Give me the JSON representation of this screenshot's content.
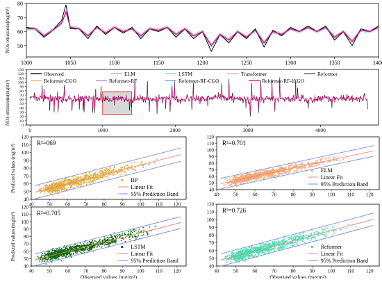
{
  "chart_data": [
    {
      "type": "line",
      "title": "",
      "xlabel": "",
      "ylabel": "NOx emissions(mg/m³)",
      "xlim": [
        1000,
        1400
      ],
      "ylim": [
        42,
        80
      ],
      "xticks": [
        1000,
        1050,
        1100,
        1150,
        1200,
        1250,
        1300,
        1350,
        1400
      ],
      "yticks": [
        50,
        60,
        70,
        80
      ],
      "x": [
        1000,
        1010,
        1020,
        1030,
        1040,
        1045,
        1050,
        1060,
        1070,
        1080,
        1090,
        1100,
        1110,
        1120,
        1130,
        1140,
        1150,
        1160,
        1170,
        1180,
        1190,
        1200,
        1210,
        1220,
        1230,
        1240,
        1250,
        1260,
        1270,
        1280,
        1290,
        1300,
        1310,
        1320,
        1330,
        1340,
        1350,
        1360,
        1370,
        1380,
        1390,
        1400
      ],
      "series": [
        {
          "name": "Observed",
          "color": "#000000",
          "values": [
            63,
            62,
            56,
            61,
            68,
            79,
            62,
            62,
            55,
            64,
            58,
            63,
            59,
            63,
            55,
            62,
            60,
            63,
            56,
            62,
            55,
            60,
            46,
            58,
            52,
            60,
            55,
            62,
            49,
            61,
            57,
            63,
            60,
            64,
            60,
            64,
            54,
            60,
            50,
            62,
            60,
            64
          ]
        },
        {
          "name": "Reformer-RF-ICGO",
          "color": "#e6007e",
          "values": [
            62,
            62,
            57,
            61,
            66,
            74,
            63,
            62,
            57,
            63,
            59,
            63,
            60,
            62,
            57,
            62,
            61,
            63,
            58,
            62,
            57,
            60,
            50,
            58,
            54,
            60,
            56,
            61,
            52,
            60,
            58,
            62,
            60,
            63,
            60,
            63,
            56,
            60,
            53,
            61,
            60,
            63
          ]
        }
      ]
    },
    {
      "type": "line",
      "title": "",
      "xlabel": "",
      "ylabel": "NOx emissions(mg/m³)",
      "xlim": [
        -50,
        4800
      ],
      "ylim": [
        0,
        130
      ],
      "xticks": [
        0,
        1000,
        2000,
        3000,
        4000
      ],
      "yticks": [
        0,
        10,
        20,
        30,
        40,
        50,
        60,
        70,
        80,
        90,
        100,
        110,
        120,
        130
      ],
      "highlight_range": [
        1000,
        1400
      ],
      "x": [
        0,
        150,
        300,
        450,
        600,
        750,
        900,
        1050,
        1200,
        1350,
        1500,
        1650,
        1800,
        1950,
        2100,
        2250,
        2400,
        2550,
        2700,
        2850,
        3000,
        3150,
        3300,
        3450,
        3600,
        3750,
        3900,
        4050,
        4200,
        4350,
        4500,
        4650
      ],
      "legend_position": "top",
      "series": [
        {
          "name": "Observed",
          "color": "#000000"
        },
        {
          "name": "ELM",
          "color": "#c9a0a0"
        },
        {
          "name": "LSTM",
          "color": "#7fcfc4"
        },
        {
          "name": "Transformer",
          "color": "#e8a0c8"
        },
        {
          "name": "Reformer",
          "color": "#555555"
        },
        {
          "name": "Reformer-CGO",
          "color": "#f0b050"
        },
        {
          "name": "Reformer-RF",
          "color": "#b080e0"
        },
        {
          "name": "Reformer-RF-CGO",
          "color": "#50a0f0"
        },
        {
          "name": "Reformer-RF-ICGO",
          "color": "#e6007e",
          "values": [
            68,
            63,
            64,
            62,
            60,
            63,
            62,
            61,
            63,
            60,
            62,
            59,
            61,
            63,
            58,
            62,
            60,
            66,
            64,
            62,
            60,
            61,
            63,
            62,
            61,
            62,
            60,
            64,
            63,
            62,
            61,
            64
          ]
        }
      ]
    },
    {
      "type": "scatter",
      "panel": "BP",
      "r2_label": "R²=069",
      "xlabel": "",
      "ylabel": "Predicted values (mg/m³)",
      "xlim": [
        40,
        125
      ],
      "ylim": [
        40,
        120
      ],
      "xticks": [
        40,
        50,
        60,
        70,
        80,
        90,
        100,
        110,
        120
      ],
      "yticks": [
        40,
        50,
        60,
        70,
        80,
        90,
        100,
        110,
        120
      ],
      "point_color": "#e0b040",
      "fit": {
        "intercept": 24,
        "slope": 0.6
      },
      "band_half_width": 8.5,
      "legend": [
        "BP",
        "Linear Fit",
        "95% Prediction Band"
      ]
    },
    {
      "type": "scatter",
      "panel": "ELM",
      "r2_label": "R²=0.701",
      "xlabel": "",
      "ylabel": "",
      "xlim": [
        40,
        125
      ],
      "ylim": [
        40,
        120
      ],
      "xticks": [
        40,
        50,
        60,
        70,
        80,
        90,
        100,
        110,
        120
      ],
      "yticks": [
        40,
        50,
        60,
        70,
        80,
        90,
        100,
        110,
        120
      ],
      "point_color": "#f4a870",
      "fit": {
        "intercept": 23,
        "slope": 0.62
      },
      "band_half_width": 8,
      "legend": [
        "ELM",
        "Linear Fit",
        "95% Prediction Band"
      ]
    },
    {
      "type": "scatter",
      "panel": "LSTM",
      "r2_label": "R²=0.705",
      "xlabel": "Observed values (mg/m³)",
      "ylabel": "Predicted values (mg/m³)",
      "xlim": [
        40,
        125
      ],
      "ylim": [
        40,
        120
      ],
      "xticks": [
        40,
        50,
        60,
        70,
        80,
        90,
        100,
        110,
        120
      ],
      "yticks": [
        40,
        50,
        60,
        70,
        80,
        90,
        100,
        110,
        120
      ],
      "point_color": "#0a6a0a",
      "fit": {
        "intercept": 22,
        "slope": 0.63
      },
      "band_half_width": 8,
      "legend": [
        "LSTM",
        "Linear Fit",
        "95% Prediction Band"
      ]
    },
    {
      "type": "scatter",
      "panel": "Reformer",
      "r2_label": "R²=0.726",
      "xlabel": "Observed values (mg/m³)",
      "ylabel": "",
      "xlim": [
        40,
        125
      ],
      "ylim": [
        40,
        120
      ],
      "xticks": [
        40,
        50,
        60,
        70,
        80,
        90,
        100,
        110,
        120
      ],
      "yticks": [
        40,
        50,
        60,
        70,
        80,
        90,
        100,
        110,
        120
      ],
      "point_color": "#40e0b0",
      "fit": {
        "intercept": 20,
        "slope": 0.66
      },
      "band_half_width": 8,
      "legend": [
        "Reformer",
        "Linear Fit",
        "95% Prediction Band"
      ]
    }
  ]
}
